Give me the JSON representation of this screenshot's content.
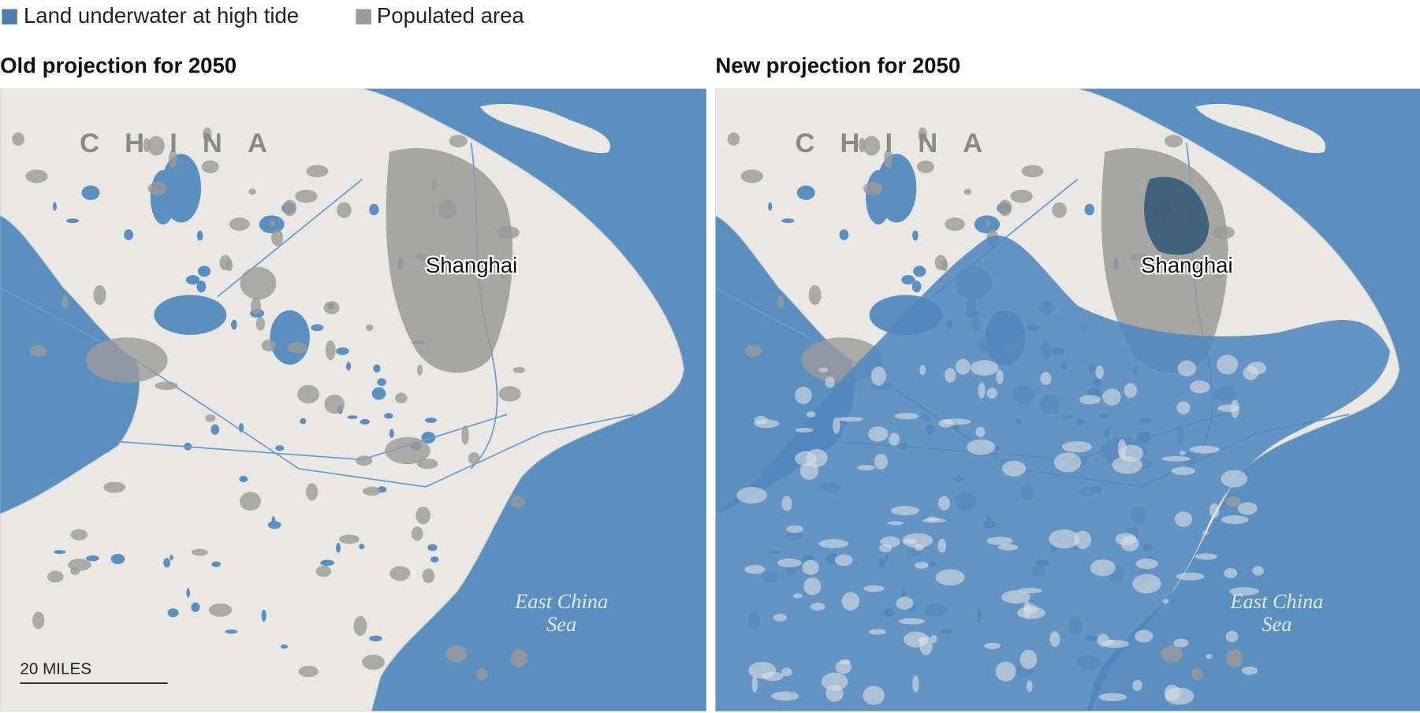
{
  "legend": {
    "items": [
      "Land underwater at high tide",
      "Populated area"
    ]
  },
  "maps": [
    {
      "title": "Old projection for 2050",
      "country": "CHINA",
      "city": "Shanghai",
      "sea": [
        "East China",
        "Sea"
      ],
      "scale": "20 MILES"
    },
    {
      "title": "New projection for 2050",
      "country": "CHINA",
      "city": "Shanghai",
      "sea": [
        "East China",
        "Sea"
      ]
    }
  ]
}
